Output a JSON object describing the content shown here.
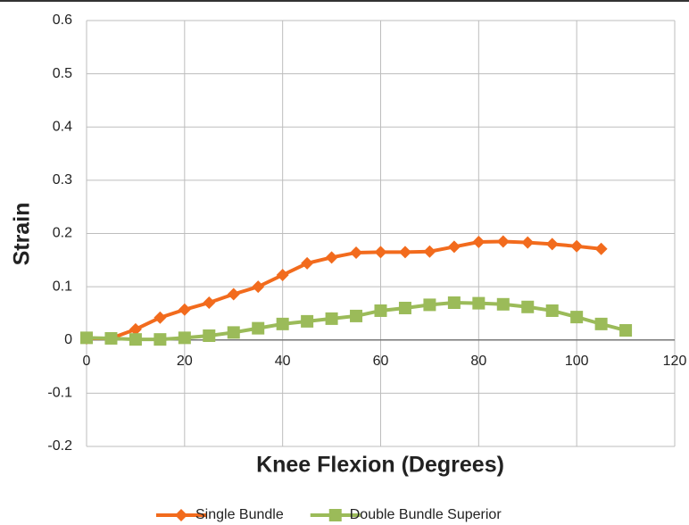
{
  "chart_data": {
    "type": "line",
    "x_label": "Knee Flexion (Degrees)",
    "y_label": "Strain",
    "series": [
      {
        "name": "Single Bundle",
        "color": "#f26b1d",
        "marker": "diamond",
        "x": [
          0,
          5,
          10,
          15,
          20,
          25,
          30,
          35,
          40,
          45,
          50,
          55,
          60,
          65,
          70,
          75,
          80,
          85,
          90,
          95,
          100,
          105
        ],
        "values": [
          0.003,
          0.003,
          0.02,
          0.042,
          0.057,
          0.07,
          0.086,
          0.1,
          0.122,
          0.144,
          0.155,
          0.164,
          0.165,
          0.165,
          0.166,
          0.175,
          0.184,
          0.185,
          0.183,
          0.18,
          0.176,
          0.171
        ]
      },
      {
        "name": "Double Bundle Superior",
        "color": "#9bbb59",
        "marker": "square",
        "x": [
          0,
          5,
          10,
          15,
          20,
          25,
          30,
          35,
          40,
          45,
          50,
          55,
          60,
          65,
          70,
          75,
          80,
          85,
          90,
          95,
          100,
          105,
          110
        ],
        "values": [
          0.004,
          0.003,
          0.001,
          0.001,
          0.004,
          0.008,
          0.014,
          0.022,
          0.03,
          0.035,
          0.04,
          0.045,
          0.055,
          0.06,
          0.066,
          0.07,
          0.069,
          0.067,
          0.062,
          0.055,
          0.043,
          0.03,
          0.018
        ]
      }
    ],
    "xlim": [
      0,
      120
    ],
    "xticks": [
      0,
      20,
      40,
      60,
      80,
      100,
      120
    ],
    "ylim": [
      -0.2,
      0.6
    ],
    "yticks": [
      -0.2,
      -0.1,
      0,
      0.1,
      0.2,
      0.3,
      0.4,
      0.5,
      0.6
    ],
    "grid": true,
    "legend": "bottom"
  }
}
